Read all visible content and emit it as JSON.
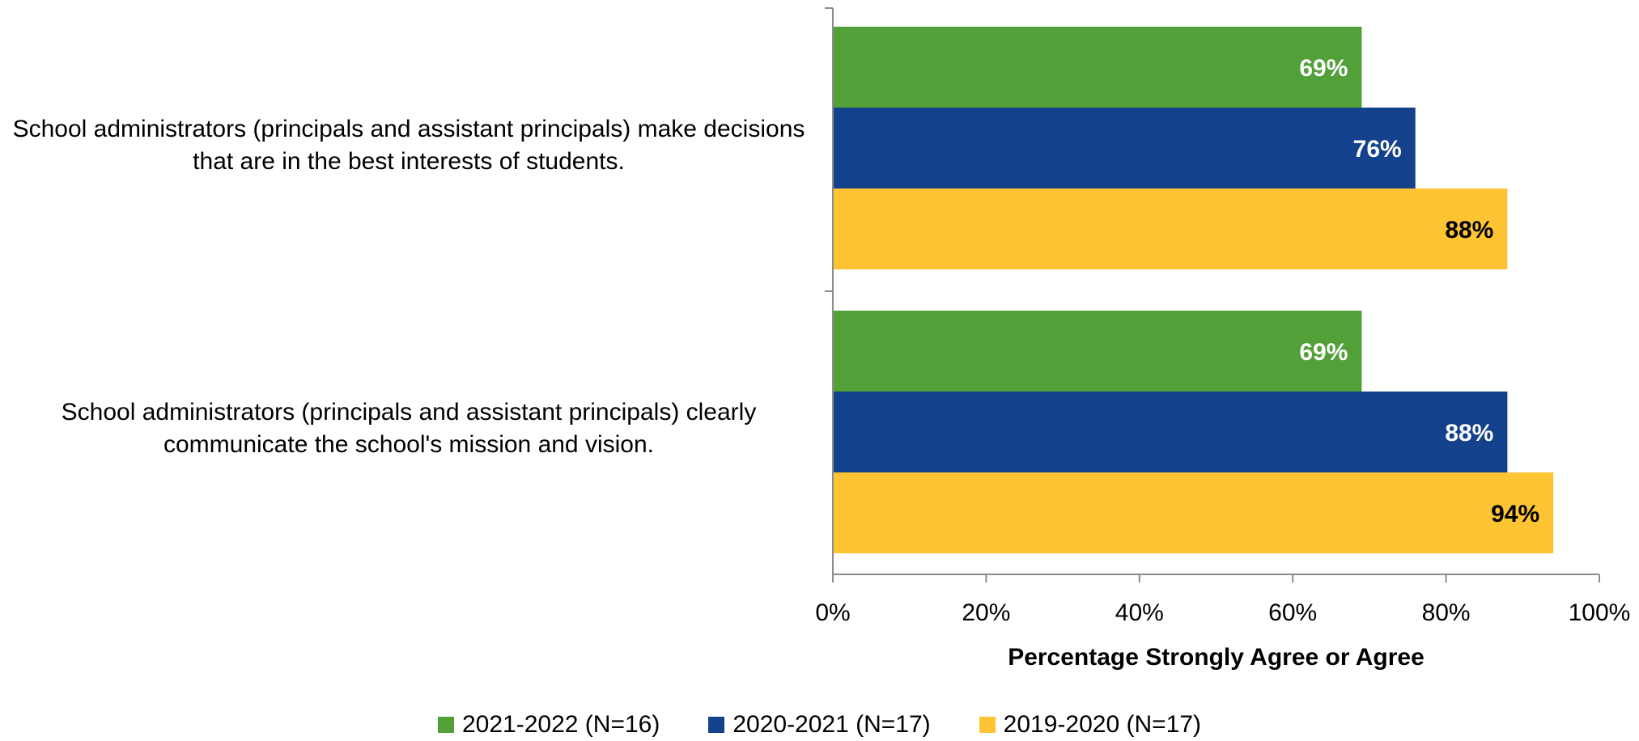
{
  "chart_data": {
    "type": "bar",
    "orientation": "horizontal",
    "categories": [
      "School administrators (principals and assistant principals) make decisions that are in the best interests of students.",
      "School administrators (principals and assistant principals) clearly communicate the school's mission and vision."
    ],
    "series": [
      {
        "name": "2021-2022 (N=16)",
        "color": "#52A038",
        "label_color": "#ffffff",
        "values": [
          69,
          69
        ],
        "labels": [
          "69%",
          "69%"
        ]
      },
      {
        "name": "2020-2021 (N=17)",
        "color": "#14418B",
        "label_color": "#ffffff",
        "values": [
          76,
          88
        ],
        "labels": [
          "76%",
          "88%"
        ]
      },
      {
        "name": "2019-2020 (N=17)",
        "color": "#FFC433",
        "label_color": "#000000",
        "values": [
          88,
          94
        ],
        "labels": [
          "88%",
          "94%"
        ]
      }
    ],
    "xlabel": "Percentage Strongly Agree or Agree",
    "xlim": [
      0,
      100
    ],
    "xticks": [
      0,
      20,
      40,
      60,
      80,
      100
    ],
    "xtick_labels": [
      "0%",
      "20%",
      "40%",
      "60%",
      "80%",
      "100%"
    ],
    "grid": false,
    "legend_position": "bottom"
  }
}
